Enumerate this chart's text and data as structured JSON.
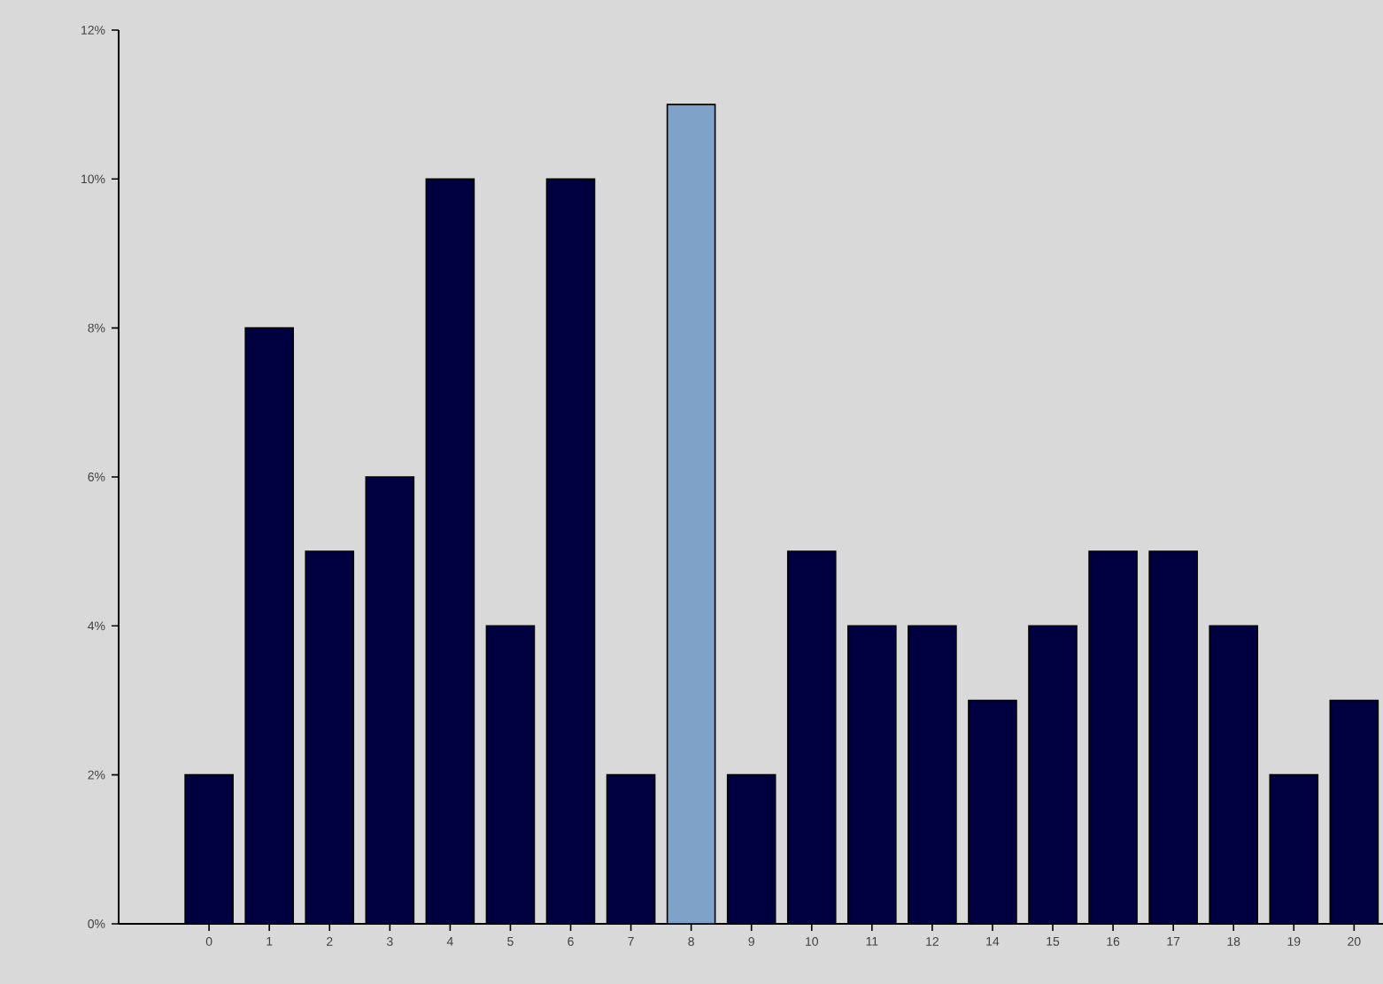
{
  "chart_data": {
    "type": "bar",
    "categories": [
      "0",
      "1",
      "2",
      "3",
      "4",
      "5",
      "6",
      "7",
      "8",
      "9",
      "10",
      "11",
      "12",
      "14",
      "15",
      "16",
      "17",
      "18",
      "19",
      "20"
    ],
    "values": [
      2,
      8,
      5,
      6,
      10,
      4,
      10,
      2,
      11,
      2,
      5,
      4,
      4,
      3,
      4,
      5,
      5,
      4,
      2,
      3
    ],
    "colors": [
      "#000040",
      "#000040",
      "#000040",
      "#000040",
      "#000040",
      "#000040",
      "#000040",
      "#000040",
      "#7fa3c8",
      "#000040",
      "#000040",
      "#000040",
      "#000040",
      "#000040",
      "#000040",
      "#000040",
      "#000040",
      "#000040",
      "#000040",
      "#000040"
    ],
    "ylim": [
      0,
      12
    ],
    "yticks": [
      {
        "value": 0,
        "label": "0%"
      },
      {
        "value": 2,
        "label": "2%"
      },
      {
        "value": 4,
        "label": "4%"
      },
      {
        "value": 6,
        "label": "6%"
      },
      {
        "value": 8,
        "label": "8%"
      },
      {
        "value": 10,
        "label": "10%"
      },
      {
        "value": 12,
        "label": "12%"
      }
    ],
    "grid": false
  }
}
